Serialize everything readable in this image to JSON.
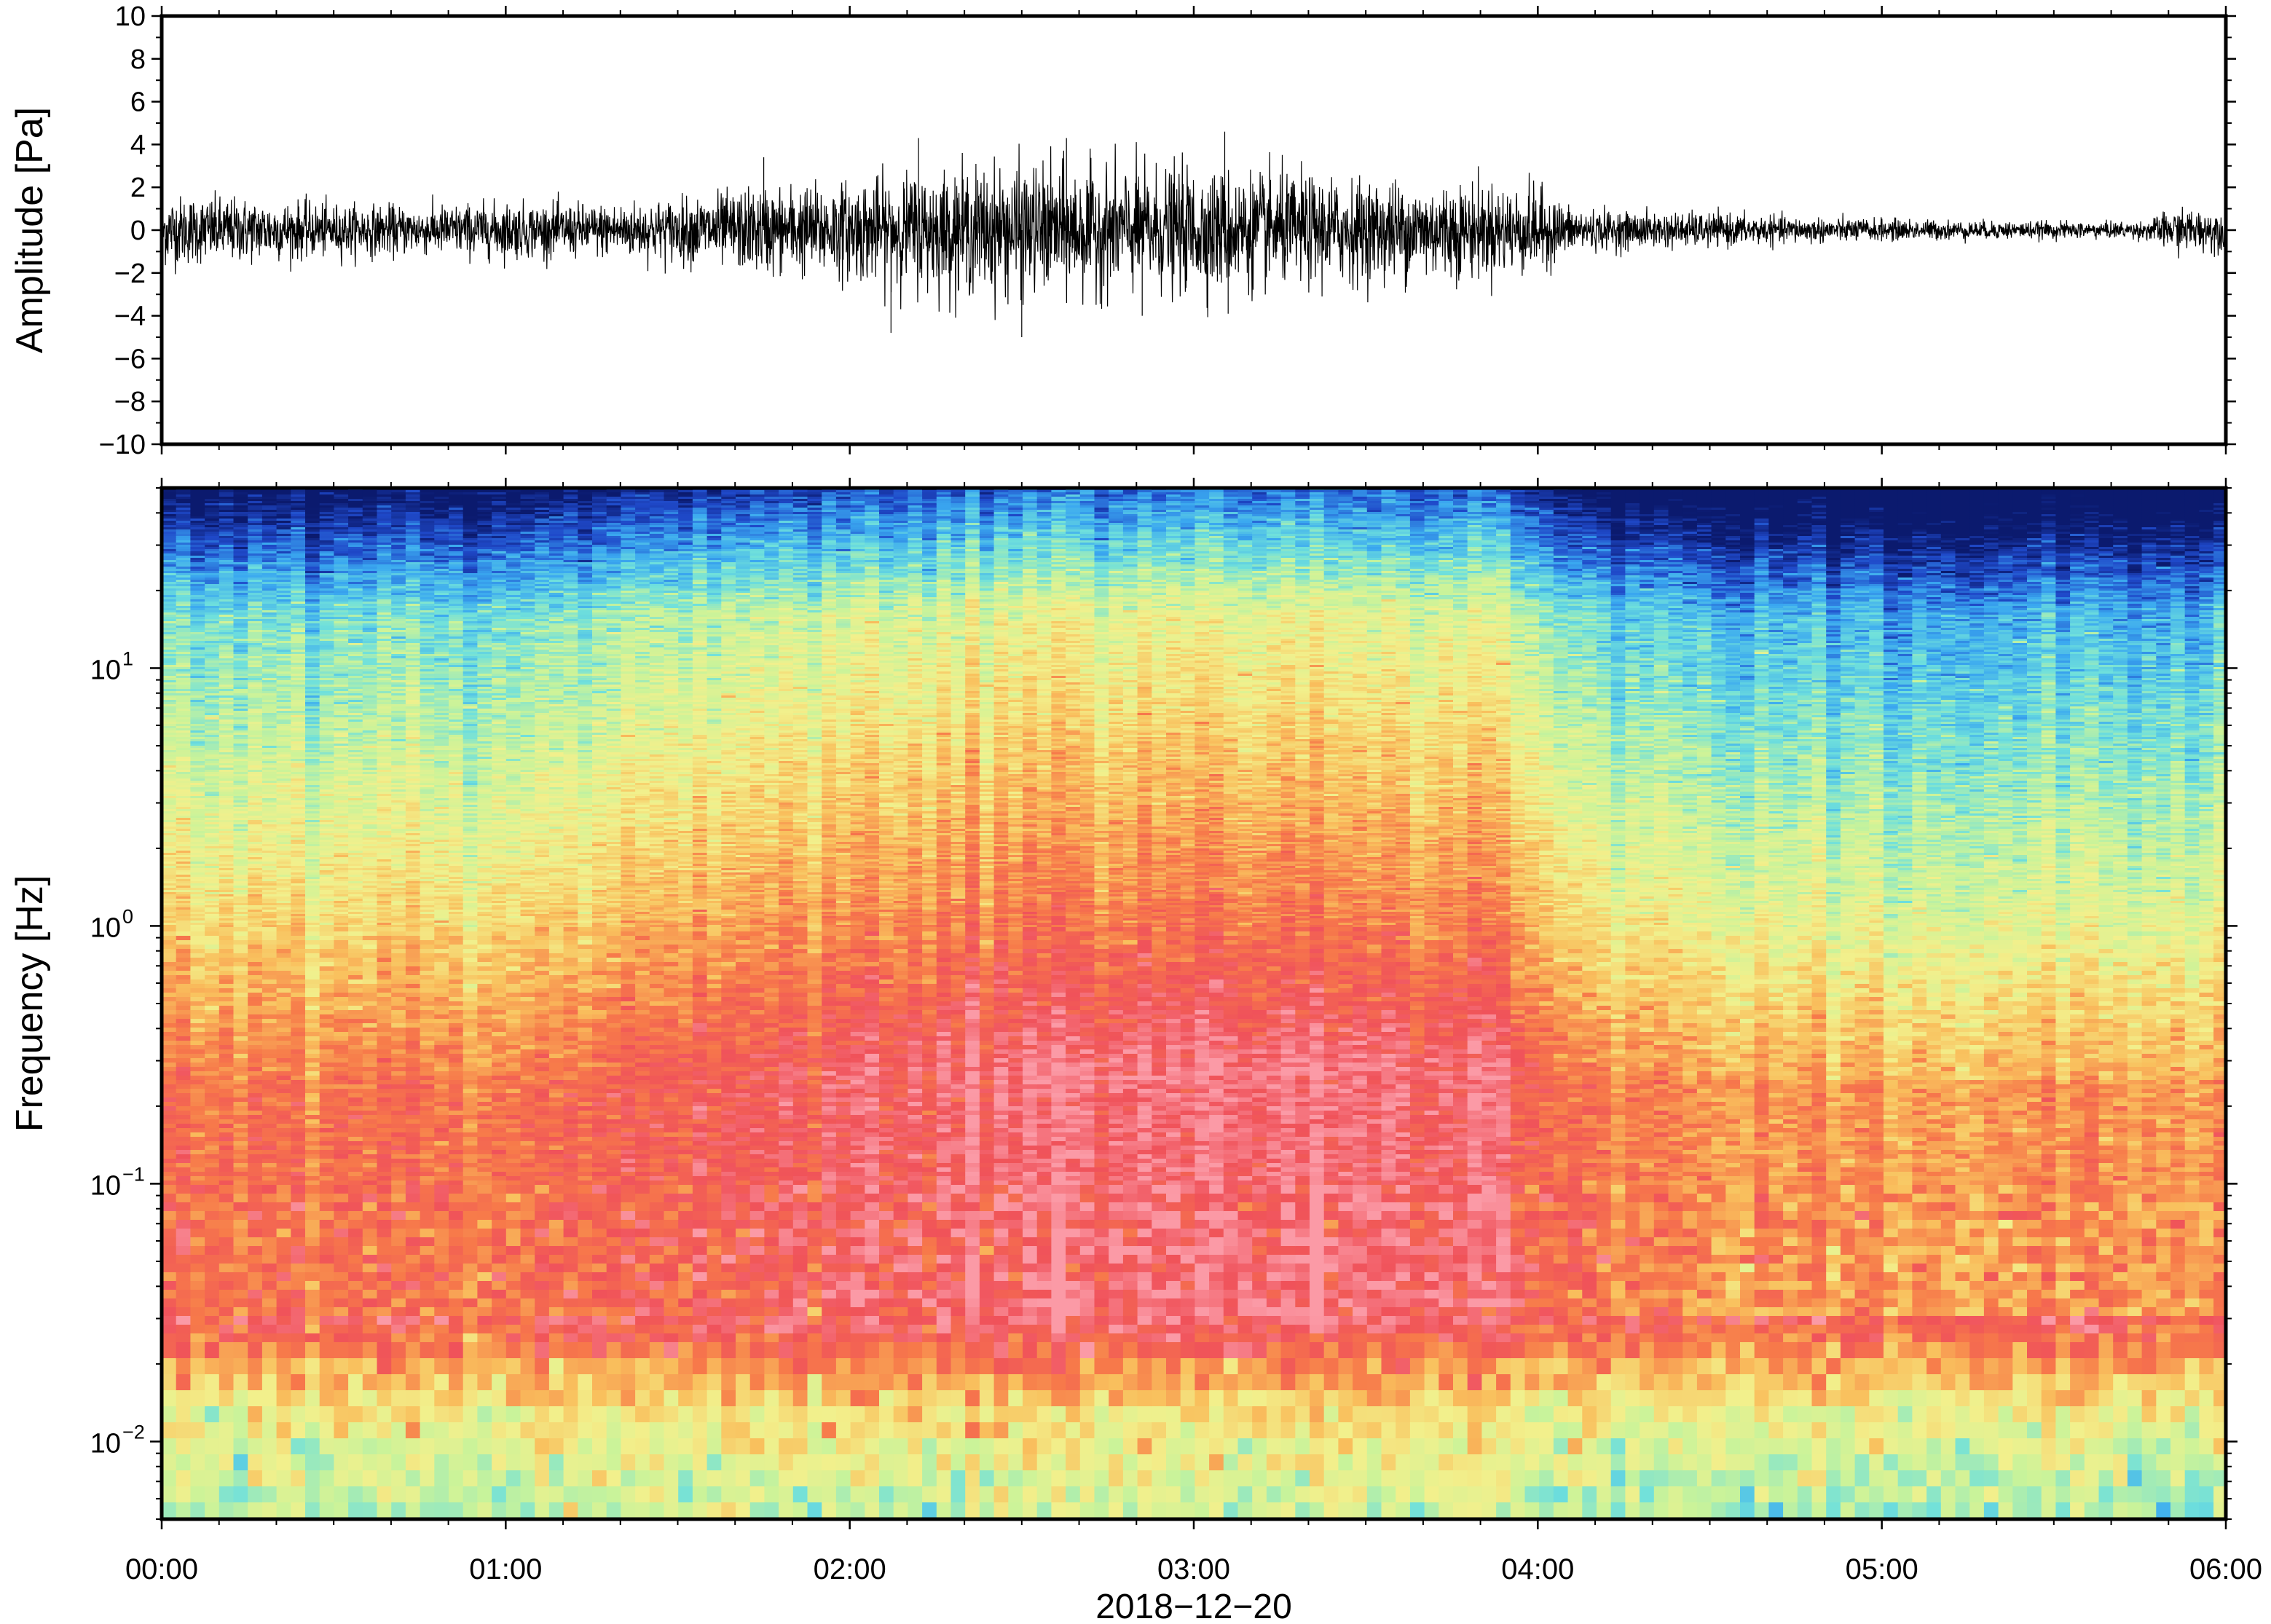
{
  "chart_data": [
    {
      "type": "line",
      "panel": "waveform",
      "ylabel": "Amplitude [Pa]",
      "ylim": [
        -10,
        10
      ],
      "yticks": [
        -10,
        -8,
        -6,
        -4,
        -2,
        0,
        2,
        4,
        6,
        8,
        10
      ],
      "ytick_labels": [
        "−10",
        "−8",
        "−6",
        "−4",
        "−2",
        "0",
        "2",
        "4",
        "6",
        "8",
        "10"
      ],
      "xlim": [
        "00:00",
        "06:00"
      ],
      "line_color": "#000000",
      "grid": false,
      "envelope": {
        "time_h": [
          0.0,
          0.25,
          0.5,
          0.75,
          1.0,
          1.25,
          1.5,
          1.75,
          2.0,
          2.25,
          2.5,
          2.75,
          3.0,
          3.25,
          3.5,
          3.75,
          4.0,
          4.1,
          4.25,
          4.5,
          4.75,
          5.0,
          5.25,
          5.5,
          5.75,
          5.85,
          6.0
        ],
        "amplitude_pa": [
          1.9,
          1.7,
          1.4,
          1.3,
          1.5,
          1.4,
          1.7,
          2.3,
          2.6,
          3.2,
          3.5,
          3.3,
          3.3,
          3.0,
          2.7,
          2.6,
          2.3,
          1.2,
          1.0,
          0.9,
          0.7,
          0.6,
          0.5,
          0.45,
          0.45,
          1.1,
          1.1
        ]
      },
      "peaks": [
        {
          "time_h": 1.75,
          "value_pa": 3.4
        },
        {
          "time_h": 2.2,
          "value_pa": 4.3
        },
        {
          "time_h": 2.12,
          "value_pa": -4.8
        },
        {
          "time_h": 2.5,
          "value_pa": -5.0
        },
        {
          "time_h": 2.63,
          "value_pa": 4.3
        },
        {
          "time_h": 3.09,
          "value_pa": 4.6
        },
        {
          "time_h": 3.1,
          "value_pa": -3.9
        },
        {
          "time_h": 2.85,
          "value_pa": -4.0
        }
      ]
    },
    {
      "type": "heatmap",
      "panel": "spectrogram",
      "ylabel": "Frequency [Hz]",
      "yscale": "log",
      "ylim": [
        0.005,
        50
      ],
      "yticks": [
        0.01,
        0.1,
        1,
        10
      ],
      "ytick_labels": [
        {
          "base": "10",
          "exp": "−2"
        },
        {
          "base": "10",
          "exp": "−1"
        },
        {
          "base": "10",
          "exp": "0"
        },
        {
          "base": "10",
          "exp": "1"
        }
      ],
      "xlabel": "2018−12−20",
      "xlim": [
        "00:00",
        "06:00"
      ],
      "xticks": [
        "00:00",
        "01:00",
        "02:00",
        "03:00",
        "04:00",
        "05:00",
        "06:00"
      ],
      "colormap": [
        "#0b1a6e",
        "#1f49c9",
        "#3aa8f0",
        "#6fe0dc",
        "#c9f39a",
        "#f2f08c",
        "#f9c05d",
        "#f77a4a",
        "#f0525a",
        "#fb9aa6"
      ],
      "time_nodes_h": [
        0.0,
        1.25,
        1.3,
        1.6,
        2.0,
        2.5,
        3.0,
        3.5,
        4.0,
        4.1,
        4.4,
        4.6,
        5.0,
        5.3,
        5.7,
        5.85,
        6.0
      ],
      "grid": false
    }
  ]
}
